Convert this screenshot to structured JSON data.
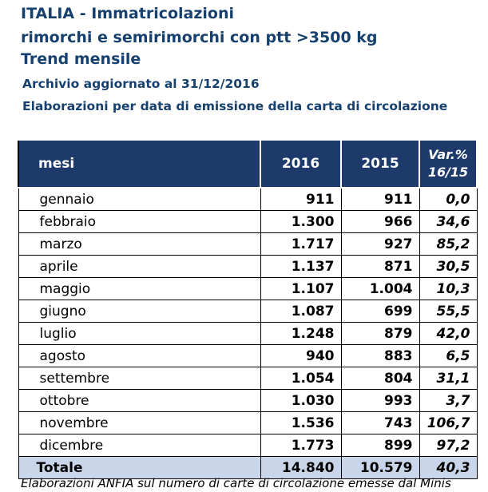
{
  "header": {
    "title_1": "ITALIA - Immatricolazioni",
    "title_2": "rimorchi e semirimorchi con ptt >3500 kg",
    "title_3": "Trend mensile",
    "archive_note": "Archivio aggiornato al 31/12/2016",
    "elaboration_note": "Elaborazioni per data di emissione della carta di circolazione"
  },
  "table": {
    "headers": {
      "month": "mesi",
      "year_a": "2016",
      "year_b": "2015",
      "var_line1": "Var.%",
      "var_line2": "16/15"
    },
    "rows": [
      {
        "month": "gennaio",
        "v2016": "911",
        "v2015": "911",
        "var": "0,0"
      },
      {
        "month": "febbraio",
        "v2016": "1.300",
        "v2015": "966",
        "var": "34,6"
      },
      {
        "month": "marzo",
        "v2016": "1.717",
        "v2015": "927",
        "var": "85,2"
      },
      {
        "month": "aprile",
        "v2016": "1.137",
        "v2015": "871",
        "var": "30,5"
      },
      {
        "month": "maggio",
        "v2016": "1.107",
        "v2015": "1.004",
        "var": "10,3"
      },
      {
        "month": "giugno",
        "v2016": "1.087",
        "v2015": "699",
        "var": "55,5"
      },
      {
        "month": "luglio",
        "v2016": "1.248",
        "v2015": "879",
        "var": "42,0"
      },
      {
        "month": "agosto",
        "v2016": "940",
        "v2015": "883",
        "var": "6,5"
      },
      {
        "month": "settembre",
        "v2016": "1.054",
        "v2015": "804",
        "var": "31,1"
      },
      {
        "month": "ottobre",
        "v2016": "1.030",
        "v2015": "993",
        "var": "3,7"
      },
      {
        "month": "novembre",
        "v2016": "1.536",
        "v2015": "743",
        "var": "106,7"
      },
      {
        "month": "dicembre",
        "v2016": "1.773",
        "v2015": "899",
        "var": "97,2"
      }
    ],
    "total": {
      "month": "Totale",
      "v2016": "14.840",
      "v2015": "10.579",
      "var": "40,3"
    }
  },
  "footnote": "Elaborazioni ANFIA sul numero di carte di circolazione emesse dal Minis"
}
